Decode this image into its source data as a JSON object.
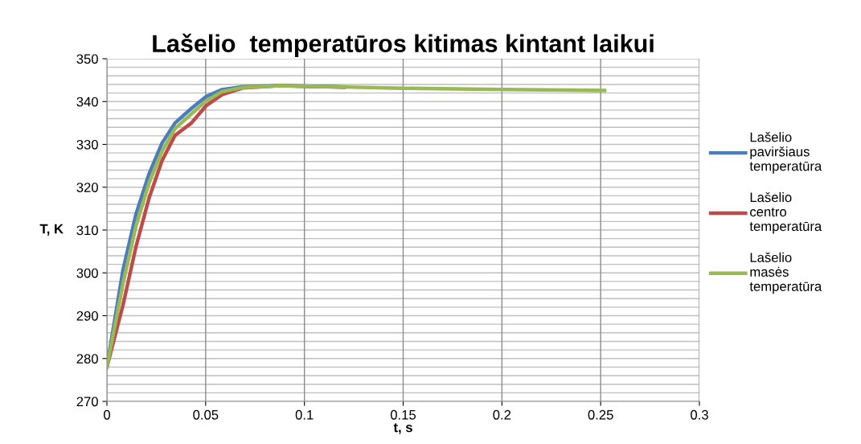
{
  "chart_data": {
    "type": "line",
    "title": "Lašelio  temperatūros kitimas kintant laikui",
    "xlabel": "t, s",
    "ylabel": "T, K",
    "x": [
      0,
      0.0081,
      0.0147,
      0.0213,
      0.0279,
      0.0345,
      0.0428,
      0.0504,
      0.0583,
      0.069,
      0.0874,
      0.12,
      0.15,
      0.2,
      0.252
    ],
    "series": [
      {
        "name": "Lašelio paviršiaus temperatūra",
        "color": "#4a7ebb",
        "values": [
          278.1,
          300.6,
          313.7,
          323.1,
          330.3,
          335.0,
          338.4,
          341.2,
          342.8,
          343.5,
          343.7,
          343.4,
          null,
          null,
          null
        ]
      },
      {
        "name": "Lašelio centro temperatūra",
        "color": "#be4b48",
        "values": [
          278.0,
          292.4,
          306.1,
          317.4,
          326.2,
          332.1,
          335.0,
          339.1,
          341.6,
          343.2,
          343.7,
          343.4,
          null,
          null,
          null
        ]
      },
      {
        "name": "Lašelio masės temperatūra",
        "color": "#98b954",
        "values": [
          278.0,
          297.4,
          310.9,
          320.9,
          328.4,
          333.7,
          337.1,
          340.2,
          342.3,
          343.3,
          343.7,
          343.4,
          343.1,
          342.8,
          342.6
        ]
      }
    ],
    "xlim": [
      0,
      0.3
    ],
    "xticks": [
      0,
      0.05,
      0.1,
      0.15,
      0.2,
      0.25,
      0.3
    ],
    "ylim": [
      270,
      350
    ],
    "yticks": [
      270,
      280,
      290,
      300,
      310,
      320,
      330,
      340,
      350
    ],
    "grid": true,
    "legend": "right",
    "line_style": "solid"
  }
}
